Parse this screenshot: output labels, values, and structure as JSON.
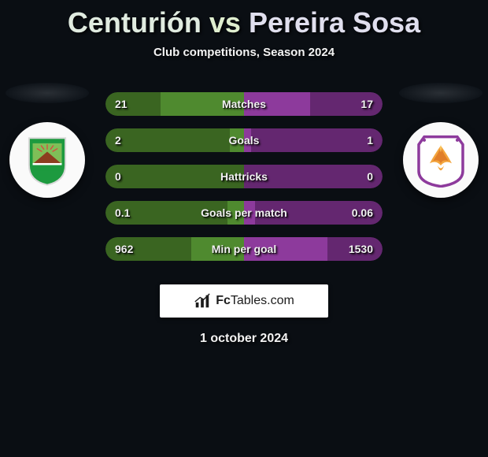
{
  "title": {
    "player1": "Centurión",
    "vs": "vs",
    "player2": "Pereira Sosa"
  },
  "subtitle": "Club competitions, Season 2024",
  "date": "1 october 2024",
  "colors": {
    "bg": "#0a0e13",
    "left_fill": "#4f8a2f",
    "left_track": "#3a6521",
    "right_fill": "#8d3a9c",
    "right_track": "#642770",
    "text": "#f1f1f1"
  },
  "badge_left": {
    "outer": "#1d9a3f",
    "inner_field": "#7fbf58",
    "mountain": "#8c3d1f",
    "sun_rays": "#d94a3f",
    "border_accent": "#d9d9d9"
  },
  "badge_right": {
    "ring": "#8d3a9c",
    "bird_body": "#f3a53d",
    "bird_wing": "#e07e2a",
    "bird_highlight": "#ffd870"
  },
  "stats": [
    {
      "label": "Matches",
      "left_val": "21",
      "right_val": "17",
      "left_pct": 0.6,
      "right_pct": 0.48
    },
    {
      "label": "Goals",
      "left_val": "2",
      "right_val": "1",
      "left_pct": 0.1,
      "right_pct": 0.05
    },
    {
      "label": "Hattricks",
      "left_val": "0",
      "right_val": "0",
      "left_pct": 0.0,
      "right_pct": 0.0
    },
    {
      "label": "Goals per match",
      "left_val": "0.1",
      "right_val": "0.06",
      "left_pct": 0.12,
      "right_pct": 0.08
    },
    {
      "label": "Min per goal",
      "left_val": "962",
      "right_val": "1530",
      "left_pct": 0.38,
      "right_pct": 0.6
    }
  ],
  "brand": {
    "name_bold": "Fc",
    "name_rest": "Tables.com"
  }
}
